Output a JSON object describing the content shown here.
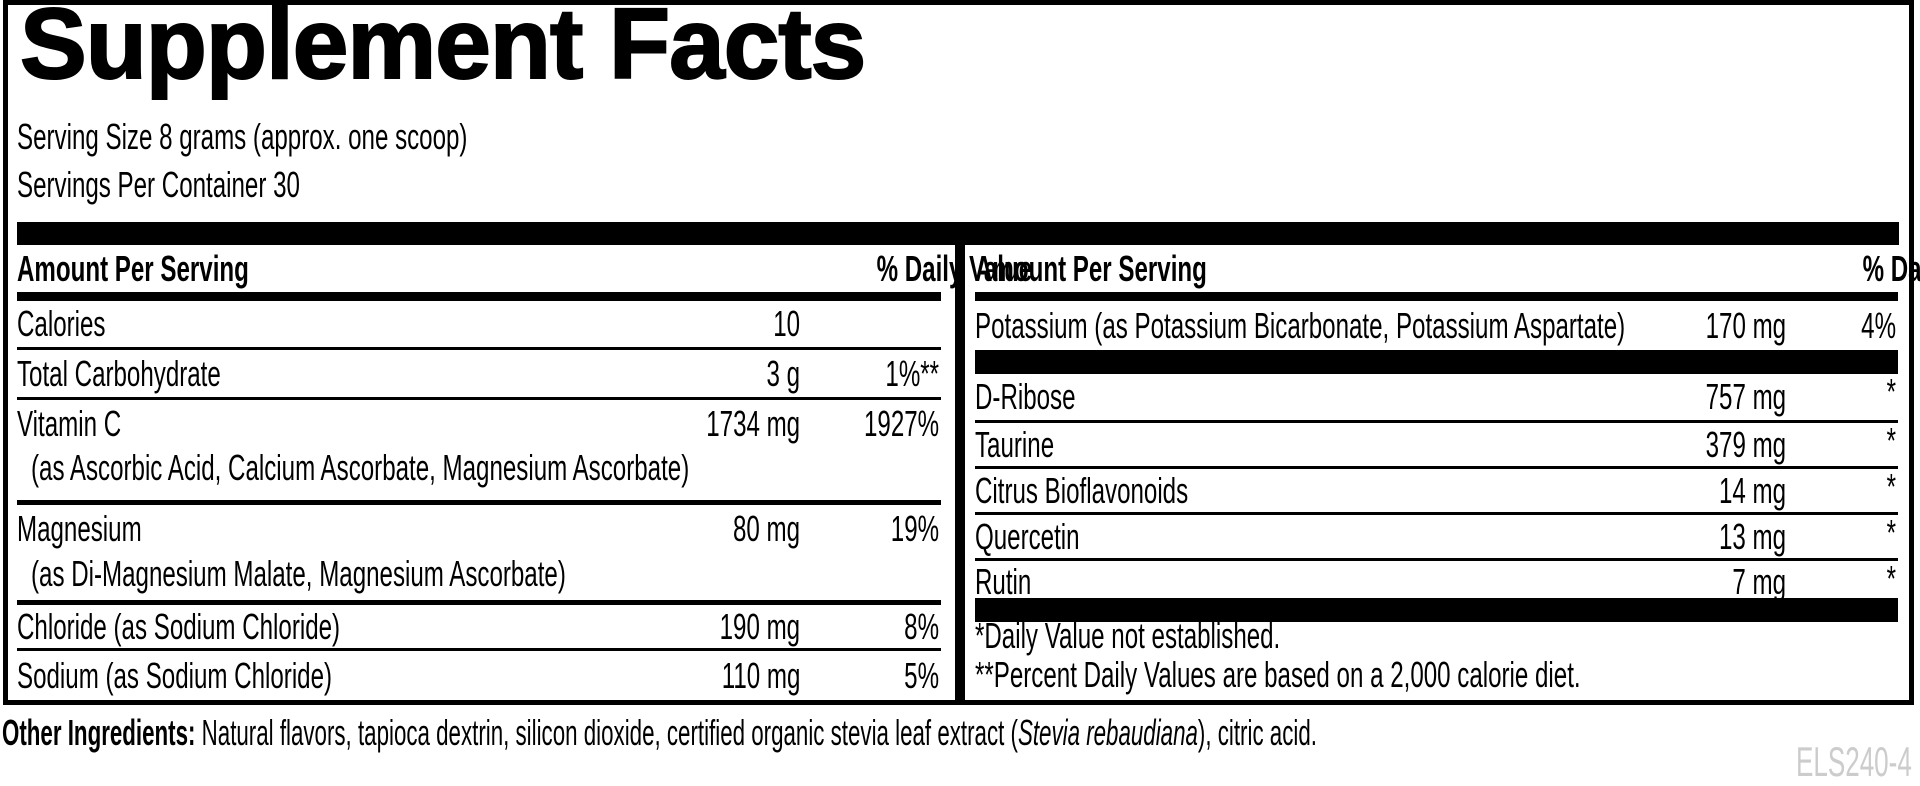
{
  "title": "Supplement Facts",
  "serving": {
    "size": "Serving Size 8 grams (approx. one scoop)",
    "per_container": "Servings Per Container 30"
  },
  "columns": {
    "amount_header": "Amount Per Serving",
    "dv_header": "% Daily Value"
  },
  "left_table": {
    "rows": [
      {
        "name": "Calories",
        "amount": "10",
        "dv": ""
      },
      {
        "name": "Total Carbohydrate",
        "amount": "3 g",
        "dv": "1%**"
      },
      {
        "name": "Vitamin C",
        "amount": "1734 mg",
        "dv": "1927%"
      },
      {
        "name": "(as Ascorbic Acid, Calcium Ascorbate, Magnesium Ascorbate)",
        "sub": true
      },
      {
        "name": "Magnesium",
        "amount": "80 mg",
        "dv": "19%"
      },
      {
        "name": "(as Di-Magnesium Malate, Magnesium Ascorbate)",
        "sub": true
      },
      {
        "name": "Chloride (as Sodium Chloride)",
        "amount": "190 mg",
        "dv": "8%"
      },
      {
        "name": "Sodium (as Sodium Chloride)",
        "amount": "110 mg",
        "dv": "5%"
      }
    ]
  },
  "right_table": {
    "rows": [
      {
        "name": "Potassium (as Potassium Bicarbonate, Potassium Aspartate)",
        "amount": "170 mg",
        "dv": "4%"
      },
      {
        "name": "D-Ribose",
        "amount": "757 mg",
        "dv": "*"
      },
      {
        "name": "Taurine",
        "amount": "379 mg",
        "dv": "*"
      },
      {
        "name": "Citrus Bioflavonoids",
        "amount": "14 mg",
        "dv": "*"
      },
      {
        "name": "Quercetin",
        "amount": "13 mg",
        "dv": "*"
      },
      {
        "name": "Rutin",
        "amount": "7 mg",
        "dv": "*"
      }
    ],
    "footnotes": [
      "*Daily Value not established.",
      "**Percent Daily Values are based on a 2,000 calorie diet."
    ]
  },
  "other_ingredients": {
    "label": "Other Ingredients:",
    "text_before_italic": " Natural flavors, tapioca dextrin, silicon dioxide, certified organic stevia leaf extract (",
    "italic": "Stevia rebaudiana",
    "text_after_italic": "), citric acid."
  },
  "product_code": "ELS240-4",
  "colors": {
    "text": "#000000",
    "background": "#ffffff",
    "rule": "#000000",
    "product_code_gray": "#cccccc"
  }
}
